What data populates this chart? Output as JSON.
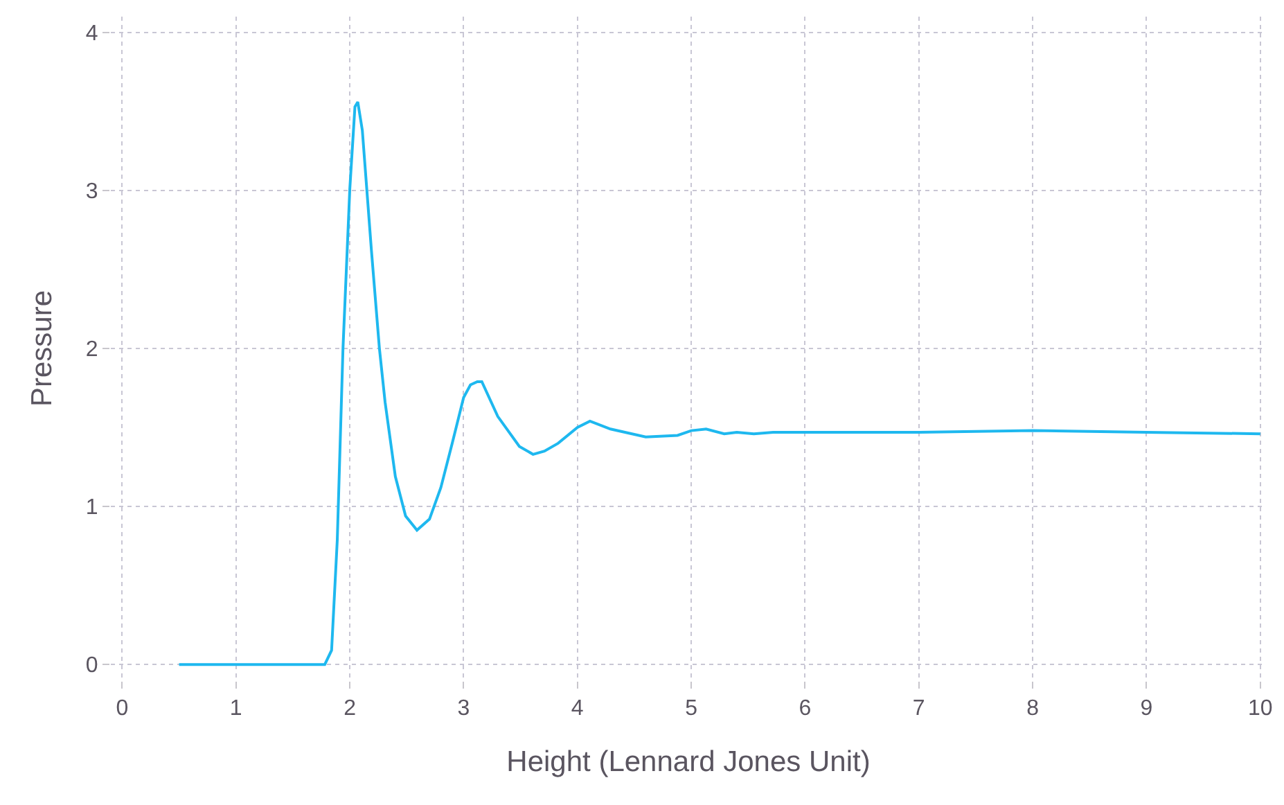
{
  "chart_data": {
    "type": "line",
    "xlabel": "Height (Lennard Jones Unit)",
    "ylabel": "Pressure",
    "xlim": [
      -0.1,
      10.05
    ],
    "ylim": [
      -0.1,
      4.1
    ],
    "xticks": [
      0,
      1,
      2,
      3,
      4,
      5,
      6,
      7,
      8,
      9,
      10
    ],
    "yticks": [
      0,
      1,
      2,
      3,
      4
    ],
    "grid": true,
    "marker": "none",
    "line_style": "solid",
    "series": [
      {
        "color": "#1eb8ef",
        "x": [
          0.5,
          1.78,
          1.84,
          1.89,
          1.94,
          2.0,
          2.045,
          2.07,
          2.11,
          2.19,
          2.26,
          2.31,
          2.4,
          2.49,
          2.59,
          2.7,
          2.8,
          2.9,
          3.0,
          3.06,
          3.12,
          3.16,
          3.3,
          3.49,
          3.61,
          3.71,
          3.83,
          4.0,
          4.11,
          4.29,
          4.6,
          4.88,
          5.0,
          5.13,
          5.29,
          5.4,
          5.55,
          5.72,
          7.0,
          8.0,
          9.0,
          10.0
        ],
        "values": [
          0,
          0,
          0.09,
          0.79,
          2.0,
          3.01,
          3.53,
          3.56,
          3.38,
          2.62,
          2.0,
          1.66,
          1.19,
          0.94,
          0.85,
          0.92,
          1.12,
          1.4,
          1.69,
          1.77,
          1.79,
          1.79,
          1.57,
          1.38,
          1.33,
          1.35,
          1.4,
          1.5,
          1.54,
          1.49,
          1.44,
          1.45,
          1.48,
          1.49,
          1.46,
          1.47,
          1.46,
          1.47,
          1.47,
          1.48,
          1.47,
          1.46
        ]
      }
    ]
  }
}
